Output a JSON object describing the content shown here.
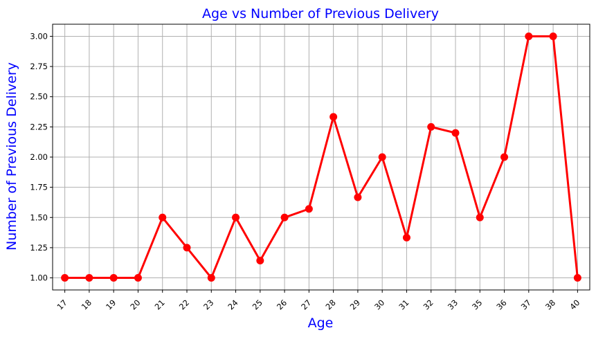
{
  "chart_data": {
    "type": "line",
    "title": "Age vs Number of Previous Delivery",
    "xlabel": "Age",
    "ylabel": "Number of Previous Delivery",
    "categories": [
      "17",
      "18",
      "19",
      "20",
      "21",
      "22",
      "23",
      "24",
      "25",
      "26",
      "27",
      "28",
      "29",
      "30",
      "31",
      "32",
      "33",
      "35",
      "36",
      "37",
      "38",
      "40"
    ],
    "series": [
      {
        "values": [
          1.0,
          1.0,
          1.0,
          1.0,
          1.5,
          1.25,
          1.0,
          1.5,
          1.143,
          1.5,
          1.571,
          2.333,
          1.667,
          2.0,
          1.333,
          2.25,
          2.2,
          1.5,
          2.0,
          3.0,
          3.0,
          1.0
        ]
      }
    ],
    "ylim": [
      0.9,
      3.1
    ],
    "yticks": [
      1.0,
      1.25,
      1.5,
      1.75,
      2.0,
      2.25,
      2.5,
      2.75,
      3.0
    ],
    "ytick_labels": [
      "1.00",
      "1.25",
      "1.50",
      "1.75",
      "2.00",
      "2.25",
      "2.50",
      "2.75",
      "3.00"
    ],
    "grid": true,
    "colors": {
      "line": "#ff0000",
      "title": "#0000ff",
      "grid": "#b0b0b0",
      "axis": "#000000"
    }
  }
}
